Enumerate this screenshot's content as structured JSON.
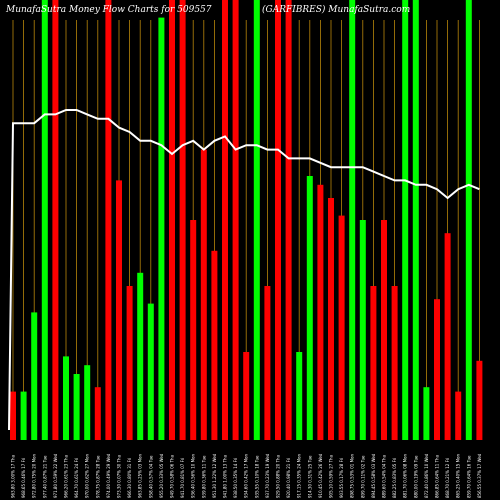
{
  "chart_data": {
    "type": "bar",
    "title_left": "MunafaSutra  Money Flow  Charts for 509557",
    "title_right": "(GARFIBRES) MunafaSutra.com",
    "ylim": [
      0,
      100
    ],
    "colors": {
      "background": "#000000",
      "up": "#00ff00",
      "down": "#ff0000",
      "line": "#ffffff",
      "grid": "#b8860b"
    },
    "categories": [
      "963.80 3.00% 17 Thu",
      "968.65 0.46% 17 Fri",
      "972.80 0.75% 20 Mon",
      "977.40 0.87% 21 Tue",
      "971.80 0.59% 22 Wed",
      "966.20 0.61% 23 Thu",
      "964.70 0.61% 24 Fri",
      "970.00 0.62% 27 Mon",
      "978.75 0.87% 28 Tue",
      "974.00 0.49% 29 Wed",
      "973.30 0.07% 30 Thu",
      "966.30 0.80% 31 Fri",
      "963.85 0.25% 03 Mon",
      "958.40 0.57% 04 Tue",
      "955.20 0.33% 05 Wed",
      "949.70 0.58% 06 Thu",
      "941.70 0.81% 07 Fri",
      "936.40 0.56% 10 Mon",
      "939.80 0.36% 11 Tue",
      "951.30 1.22% 12 Wed",
      "941.80 1.00% 13 Thu",
      "938.50 0.35% 14 Fri",
      "934.60 0.42% 17 Mon",
      "935.55 0.10% 18 Tue",
      "937.70 0.23% 19 Wed",
      "929.50 0.88% 20 Thu",
      "920.40 0.98% 21 Fri",
      "917.15 0.35% 24 Mon",
      "914.30 0.31% 25 Tue",
      "910.45 0.42% 26 Wed",
      "905.10 0.59% 27 Thu",
      "903.55 0.17% 28 Fri",
      "898.75 0.53% 01 Mon",
      "899.70 0.11% 02 Tue",
      "894.45 0.58% 03 Wed",
      "889.60 0.54% 04 Thu",
      "882.25 0.83% 05 Fri",
      "881.70 0.06% 08 Mon",
      "880.00 0.19% 09 Tue",
      "872.40 0.86% 10 Wed",
      "866.85 0.64% 11 Thu",
      "868.70 0.21% 12 Fri",
      "865.25 0.40% 15 Mon",
      "859.70 0.64% 16 Tue",
      "856.55 0.37% 17 Wed"
    ],
    "series": [
      {
        "name": "",
        "values": [
          11,
          11,
          29,
          100,
          100,
          19,
          15,
          17,
          12,
          100,
          59,
          35,
          38,
          31,
          96,
          100,
          100,
          50,
          66,
          43,
          100,
          100,
          20,
          100,
          35,
          100,
          100,
          20,
          60,
          58,
          55,
          51,
          100,
          50,
          35,
          50,
          35,
          100,
          100,
          12,
          32,
          47,
          11,
          100,
          18
        ],
        "direction": [
          "down",
          "up",
          "up",
          "up",
          "down",
          "up",
          "up",
          "up",
          "down",
          "down",
          "down",
          "down",
          "up",
          "up",
          "up",
          "down",
          "down",
          "down",
          "down",
          "down",
          "down",
          "down",
          "down",
          "up",
          "down",
          "down",
          "down",
          "up",
          "up",
          "down",
          "down",
          "down",
          "up",
          "up",
          "down",
          "down",
          "down",
          "up",
          "up",
          "up",
          "down",
          "down",
          "down",
          "up",
          "down"
        ]
      }
    ],
    "line_values": [
      72,
      72,
      72,
      74,
      74,
      75,
      75,
      74,
      73,
      73,
      71,
      70,
      68,
      68,
      67,
      65,
      67,
      68,
      66,
      68,
      69,
      66,
      67,
      67,
      66,
      66,
      64,
      64,
      64,
      63,
      62,
      62,
      62,
      62,
      61,
      60,
      59,
      59,
      58,
      58,
      57,
      55,
      57,
      58,
      57
    ]
  }
}
